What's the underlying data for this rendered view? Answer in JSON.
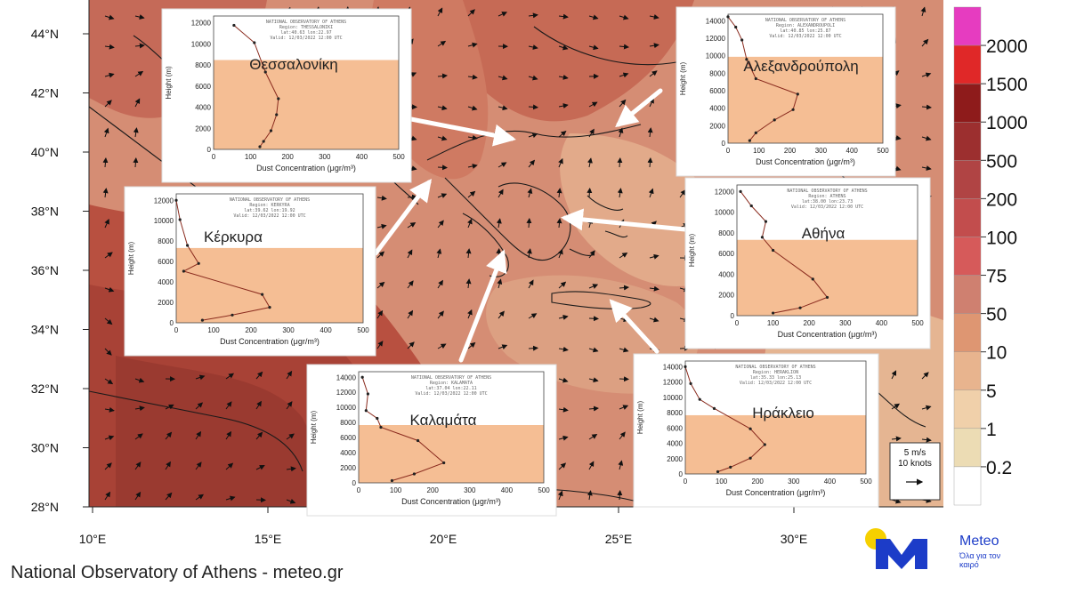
{
  "map": {
    "lat_labels": [
      "44°N",
      "42°N",
      "40°N",
      "38°N",
      "36°N",
      "34°N",
      "32°N",
      "30°N",
      "28°N"
    ],
    "lon_labels": [
      "10°E",
      "15°E",
      "20°E",
      "25°E",
      "30°E"
    ],
    "wind_key": {
      "line1": "5 m/s",
      "line2": "10 knots"
    }
  },
  "colorbar": {
    "levels": [
      "2000",
      "1500",
      "1000",
      "500",
      "200",
      "100",
      "75",
      "50",
      "10",
      "5",
      "1",
      "0.2"
    ],
    "colors": [
      "#e63cc0",
      "#e02828",
      "#8e1b1b",
      "#9c2f2f",
      "#b04444",
      "#c24d4d",
      "#d65a5a",
      "#cf8070",
      "#de9672",
      "#e8b48e",
      "#f0d0aa",
      "#ecdcb4",
      "#ffffff"
    ]
  },
  "profiles": [
    {
      "city": "Θεσσαλονίκη",
      "header": [
        "NATIONAL OBSERVATORY OF ATHENS",
        "Region: THESSALONIKI",
        "lat:40.63 lon:22.97",
        "Valid: 12/03/2022 12:00 UTC"
      ],
      "xticks": [
        "0",
        "100",
        "200",
        "300",
        "400",
        "500"
      ],
      "xlabel": "Dust Concentration (μgr/m³)",
      "ylabel": "Height (m)",
      "yticks": [
        "0",
        "2000",
        "4000",
        "6000",
        "8000",
        "10000",
        "12000"
      ]
    },
    {
      "city": "Αλεξανδρούπολη",
      "header": [
        "NATIONAL OBSERVATORY OF ATHENS",
        "Region: ALEXANDROUPOLI",
        "lat:40.85 lon:25.87",
        "Valid: 12/03/2022 12:00 UTC"
      ],
      "xticks": [
        "0",
        "100",
        "200",
        "300",
        "400",
        "500"
      ],
      "xlabel": "Dust Concentration (μgr/m³)",
      "ylabel": "Height (m)",
      "yticks": [
        "0",
        "2000",
        "4000",
        "6000",
        "8000",
        "10000",
        "12000",
        "14000"
      ]
    },
    {
      "city": "Κέρκυρα",
      "header": [
        "NATIONAL OBSERVATORY OF ATHENS",
        "Region: KERKYRA",
        "lat:39.62 lon:19.92",
        "Valid: 12/03/2022 12:00 UTC"
      ],
      "xticks": [
        "0",
        "100",
        "200",
        "300",
        "400",
        "500"
      ],
      "xlabel": "Dust Concentration (μgr/m³)",
      "ylabel": "Height (m)",
      "yticks": [
        "0",
        "2000",
        "4000",
        "6000",
        "8000",
        "10000",
        "12000"
      ]
    },
    {
      "city": "Αθήνα",
      "header": [
        "NATIONAL OBSERVATORY OF ATHENS",
        "Region: ATHENS",
        "lat:38.00 lon:23.73",
        "Valid: 12/03/2022 12:00 UTC"
      ],
      "xticks": [
        "0",
        "100",
        "200",
        "300",
        "400",
        "500"
      ],
      "xlabel": "Dust Concentration (μgr/m³)",
      "ylabel": "Height (m)",
      "yticks": [
        "0",
        "2000",
        "4000",
        "6000",
        "8000",
        "10000",
        "12000"
      ]
    },
    {
      "city": "Καλαμάτα",
      "header": [
        "NATIONAL OBSERVATORY OF ATHENS",
        "Region: KALAMATA",
        "lat:37.04 lon:22.11",
        "Valid: 12/03/2022 12:00 UTC"
      ],
      "xticks": [
        "0",
        "100",
        "200",
        "300",
        "400",
        "500"
      ],
      "xlabel": "Dust Concentration (μgr/m³)",
      "ylabel": "Height (m)",
      "yticks": [
        "0",
        "2000",
        "4000",
        "6000",
        "8000",
        "10000",
        "12000",
        "14000"
      ]
    },
    {
      "city": "Ηράκλειο",
      "header": [
        "NATIONAL OBSERVATORY OF ATHENS",
        "Region: HERAKLION",
        "lat:35.33 lon:25.13",
        "Valid: 12/03/2022 12:00 UTC"
      ],
      "xticks": [
        "0",
        "100",
        "200",
        "300",
        "400",
        "500"
      ],
      "xlabel": "Dust Concentration (μgr/m³)",
      "ylabel": "Height (m)",
      "yticks": [
        "0",
        "2000",
        "4000",
        "6000",
        "8000",
        "10000",
        "12000",
        "14000"
      ]
    }
  ],
  "footer": "National Observatory of Athens - meteo.gr",
  "logo": {
    "name": "Meteo",
    "tagline": "Όλα για τον καιρό"
  }
}
